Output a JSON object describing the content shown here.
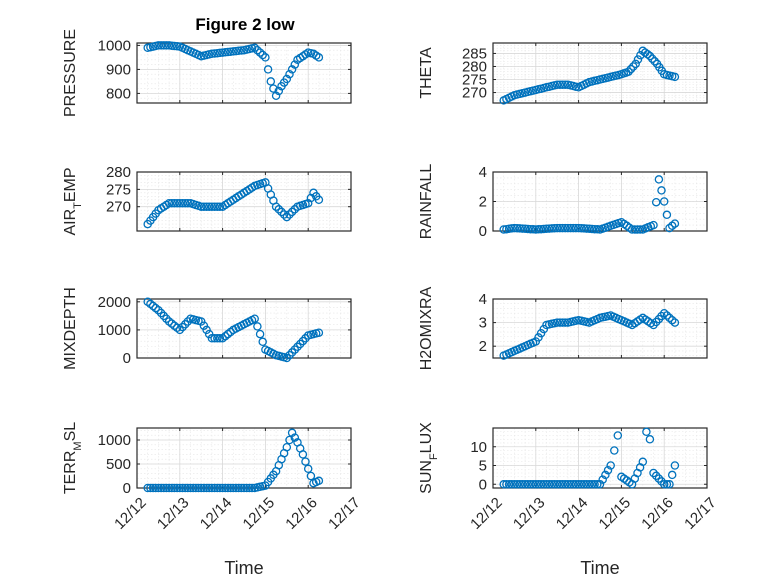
{
  "figure": {
    "title": "Figure 2 low",
    "marker_color": "#0072bd"
  },
  "chart_data": [
    {
      "type": "scatter",
      "title": "Figure 2 low",
      "ylabel": "PRESSURE",
      "xlabel": "",
      "xlim": [
        "12/12",
        "12/17"
      ],
      "ylim": [
        760,
        1010
      ],
      "yticks": [
        800,
        900,
        1000
      ],
      "x": [
        "12/12 06h",
        "12/12 12h",
        "12/12 18h",
        "12/13 00h",
        "12/13 06h",
        "12/13 12h",
        "12/13 18h",
        "12/14 00h",
        "12/14 06h",
        "12/14 12h",
        "12/14 18h",
        "12/15 00h",
        "12/15 03h",
        "12/15 06h",
        "12/15 09h",
        "12/15 12h",
        "12/15 15h",
        "12/15 18h",
        "12/16 00h",
        "12/16 03h",
        "12/16 06h"
      ],
      "y": [
        990,
        1000,
        1000,
        995,
        975,
        955,
        965,
        970,
        975,
        980,
        990,
        950,
        850,
        790,
        830,
        860,
        900,
        940,
        970,
        965,
        950
      ]
    },
    {
      "type": "scatter",
      "ylabel": "THETA",
      "xlabel": "",
      "xlim": [
        "12/12",
        "12/17"
      ],
      "ylim": [
        266,
        289
      ],
      "yticks": [
        270,
        275,
        280,
        285
      ],
      "x": [
        "12/12 06h",
        "12/12 12h",
        "12/12 18h",
        "12/13 00h",
        "12/13 06h",
        "12/13 12h",
        "12/13 18h",
        "12/14 00h",
        "12/14 06h",
        "12/14 12h",
        "12/14 18h",
        "12/15 00h",
        "12/15 04h",
        "12/15 08h",
        "12/15 12h",
        "12/15 16h",
        "12/15 20h",
        "12/16 00h",
        "12/16 06h"
      ],
      "y": [
        267,
        269,
        270,
        271,
        272,
        273,
        273,
        272,
        274,
        275,
        276,
        277,
        278,
        281,
        286,
        284,
        281,
        277,
        276
      ]
    },
    {
      "type": "scatter",
      "ylabel": "AIR_TEMP",
      "xlabel": "",
      "xlim": [
        "12/12",
        "12/17"
      ],
      "ylim": [
        263,
        280
      ],
      "yticks": [
        270,
        275,
        280
      ],
      "x": [
        "12/12 06h",
        "12/12 12h",
        "12/12 18h",
        "12/13 00h",
        "12/13 06h",
        "12/13 12h",
        "12/13 18h",
        "12/14 00h",
        "12/14 06h",
        "12/14 12h",
        "12/14 18h",
        "12/15 00h",
        "12/15 06h",
        "12/15 12h",
        "12/15 18h",
        "12/16 00h",
        "12/16 03h",
        "12/16 06h"
      ],
      "y": [
        265,
        269,
        271,
        271,
        271,
        270,
        270,
        270,
        272,
        274,
        276,
        277,
        270,
        267,
        270,
        271,
        274,
        272
      ]
    },
    {
      "type": "scatter",
      "ylabel": "RAINFALL",
      "xlabel": "",
      "xlim": [
        "12/12",
        "12/17"
      ],
      "ylim": [
        0,
        4
      ],
      "yticks": [
        0,
        2,
        4
      ],
      "x": [
        "12/12 06h",
        "12/12 12h",
        "12/13 00h",
        "12/13 12h",
        "12/14 00h",
        "12/14 12h",
        "12/15 00h",
        "12/15 06h",
        "12/15 12h",
        "12/15 18h",
        "12/15 21h",
        "12/16 00h",
        "12/16 03h",
        "12/16 06h"
      ],
      "y": [
        0.1,
        0.2,
        0.1,
        0.2,
        0.2,
        0.1,
        0.6,
        0.1,
        0.1,
        0.4,
        3.5,
        2,
        0.2,
        0.5
      ]
    },
    {
      "type": "scatter",
      "ylabel": "MIXDEPTH",
      "xlabel": "",
      "xlim": [
        "12/12",
        "12/17"
      ],
      "ylim": [
        0,
        2100
      ],
      "yticks": [
        0,
        1000,
        2000
      ],
      "x": [
        "12/12 06h",
        "12/12 12h",
        "12/12 18h",
        "12/13 00h",
        "12/13 06h",
        "12/13 12h",
        "12/13 18h",
        "12/14 00h",
        "12/14 06h",
        "12/14 12h",
        "12/14 18h",
        "12/15 00h",
        "12/15 06h",
        "12/15 12h",
        "12/15 18h",
        "12/16 00h",
        "12/16 06h"
      ],
      "y": [
        2000,
        1700,
        1300,
        1000,
        1400,
        1300,
        700,
        700,
        1000,
        1200,
        1400,
        300,
        100,
        0,
        400,
        800,
        900
      ]
    },
    {
      "type": "scatter",
      "ylabel": "H2OMIXRA",
      "xlabel": "",
      "xlim": [
        "12/12",
        "12/17"
      ],
      "ylim": [
        1.5,
        4
      ],
      "yticks": [
        2,
        3,
        4
      ],
      "x": [
        "12/12 06h",
        "12/12 12h",
        "12/12 18h",
        "12/13 00h",
        "12/13 06h",
        "12/13 12h",
        "12/13 18h",
        "12/14 00h",
        "12/14 06h",
        "12/14 12h",
        "12/14 18h",
        "12/15 00h",
        "12/15 06h",
        "12/15 12h",
        "12/15 18h",
        "12/16 00h",
        "12/16 06h"
      ],
      "y": [
        1.6,
        1.8,
        2,
        2.2,
        2.9,
        3,
        3,
        3.1,
        3,
        3.2,
        3.3,
        3.1,
        2.9,
        3.2,
        2.9,
        3.4,
        3
      ]
    },
    {
      "type": "scatter",
      "ylabel": "TERR_MSL",
      "xlabel": "Time",
      "xlim": [
        "12/12",
        "12/17"
      ],
      "ylim": [
        0,
        1250
      ],
      "yticks": [
        0,
        500,
        1000
      ],
      "xticks": [
        "12/12",
        "12/13",
        "12/14",
        "12/15",
        "12/16",
        "12/17"
      ],
      "x": [
        "12/12 06h",
        "12/12 12h",
        "12/13 00h",
        "12/13 12h",
        "12/14 00h",
        "12/14 12h",
        "12/14 18h",
        "12/15 00h",
        "12/15 06h",
        "12/15 12h",
        "12/15 15h",
        "12/15 18h",
        "12/15 21h",
        "12/16 00h",
        "12/16 03h",
        "12/16 06h"
      ],
      "y": [
        0,
        0,
        0,
        0,
        0,
        0,
        0,
        50,
        350,
        850,
        1150,
        950,
        700,
        400,
        100,
        150
      ]
    },
    {
      "type": "scatter",
      "ylabel": "SUN_FLUX",
      "xlabel": "Time",
      "xlim": [
        "12/12",
        "12/17"
      ],
      "ylim": [
        -1,
        15
      ],
      "yticks": [
        0,
        5,
        10
      ],
      "xticks": [
        "12/12",
        "12/13",
        "12/14",
        "12/15",
        "12/16",
        "12/17"
      ],
      "x": [
        "12/12 06h",
        "12/12 12h",
        "12/13 00h",
        "12/13 12h",
        "12/14 00h",
        "12/14 12h",
        "12/14 18h",
        "12/14 20h",
        "12/14 22h",
        "12/15 00h",
        "12/15 06h",
        "12/15 12h",
        "12/15 14h",
        "12/15 16h",
        "12/15 18h",
        "12/16 00h",
        "12/16 03h",
        "12/16 06h"
      ],
      "y": [
        0,
        0,
        0,
        0,
        0,
        0,
        5,
        9,
        13,
        2,
        0,
        6,
        14,
        12,
        3,
        0,
        0,
        5
      ]
    }
  ]
}
